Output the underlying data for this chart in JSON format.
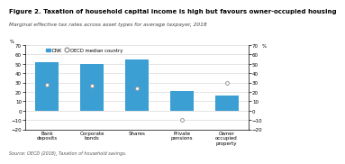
{
  "title": "Figure 2. Taxation of household capital income is high but favours owner-occupied housing",
  "subtitle": "Marginal effective tax rates across asset types for average taxpayer, 2018",
  "source": "Source: OECD (2018), Taxation of household savings.",
  "categories": [
    "Bank\ndeposits",
    "Corporate\nbonds",
    "Shares",
    "Private\npensions",
    "Owner\noccupied\nproperty"
  ],
  "dnk_values": [
    52,
    50,
    55,
    21,
    16
  ],
  "oecd_values": [
    28,
    27,
    24,
    -10,
    30
  ],
  "bar_color": "#3b9fd4",
  "marker_color": "#999999",
  "ylim": [
    -20,
    70
  ],
  "yticks": [
    -20,
    -10,
    0,
    10,
    20,
    30,
    40,
    50,
    60,
    70
  ],
  "ylabel": "%",
  "legend_dnk": "DNK",
  "legend_oecd": "OECD median country",
  "title_fontsize": 5.0,
  "subtitle_fontsize": 4.2,
  "axis_fontsize": 4.0,
  "tick_fontsize": 4.0,
  "source_fontsize": 3.5
}
